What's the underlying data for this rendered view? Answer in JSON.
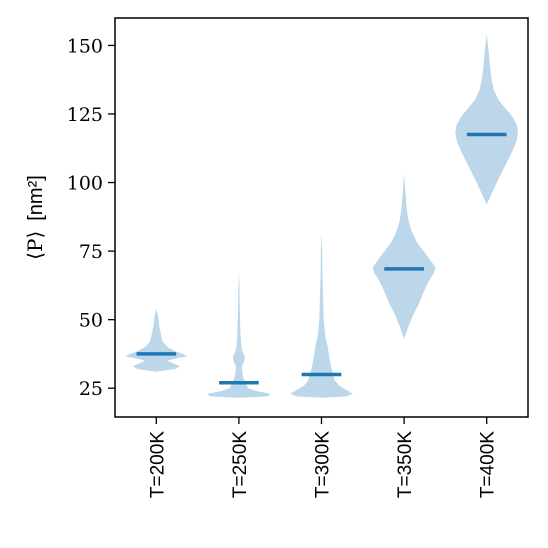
{
  "chart_data": {
    "type": "violin",
    "title": "",
    "ylabel": {
      "symbol": "⟨P⟩",
      "unit": "[nm²]"
    },
    "xlabel": "",
    "ylim": [
      14.5,
      160
    ],
    "yticks": [
      25,
      50,
      75,
      100,
      125,
      150
    ],
    "grid": false,
    "categories": [
      "T=200K",
      "T=250K",
      "T=300K",
      "T=350K",
      "T=400K"
    ],
    "colors": {
      "body": "#bcd6ea",
      "median": "#1f77b4",
      "axis": "#000000"
    },
    "violins": [
      {
        "label": "T=200K",
        "median": 37.5,
        "profile": [
          [
            31,
            0
          ],
          [
            32,
            0.6
          ],
          [
            33,
            0.75
          ],
          [
            34,
            0.55
          ],
          [
            35,
            0.35
          ],
          [
            36,
            0.7
          ],
          [
            36.5,
            0.98
          ],
          [
            37.5,
            0.85
          ],
          [
            38.5,
            0.6
          ],
          [
            40,
            0.36
          ],
          [
            42,
            0.2
          ],
          [
            45,
            0.14
          ],
          [
            48,
            0.09
          ],
          [
            51,
            0.06
          ],
          [
            54,
            0
          ]
        ]
      },
      {
        "label": "T=250K",
        "median": 27,
        "profile": [
          [
            21.5,
            0
          ],
          [
            22,
            0.92
          ],
          [
            23,
            1.0
          ],
          [
            24,
            0.55
          ],
          [
            25,
            0.3
          ],
          [
            27,
            0.2
          ],
          [
            29,
            0.14
          ],
          [
            31,
            0.1
          ],
          [
            33,
            0.1
          ],
          [
            35,
            0.17
          ],
          [
            36.5,
            0.2
          ],
          [
            38,
            0.12
          ],
          [
            40,
            0.08
          ],
          [
            45,
            0.05
          ],
          [
            52,
            0.03
          ],
          [
            60,
            0.02
          ],
          [
            68,
            0
          ]
        ]
      },
      {
        "label": "T=300K",
        "median": 30,
        "profile": [
          [
            21.5,
            0
          ],
          [
            22,
            0.8
          ],
          [
            23,
            1.0
          ],
          [
            24,
            0.85
          ],
          [
            26,
            0.55
          ],
          [
            28,
            0.42
          ],
          [
            30,
            0.37
          ],
          [
            33,
            0.3
          ],
          [
            36,
            0.25
          ],
          [
            40,
            0.2
          ],
          [
            44,
            0.12
          ],
          [
            50,
            0.07
          ],
          [
            58,
            0.05
          ],
          [
            66,
            0.03
          ],
          [
            75,
            0.02
          ],
          [
            82,
            0
          ]
        ]
      },
      {
        "label": "T=350K",
        "median": 68.5,
        "profile": [
          [
            43,
            0
          ],
          [
            47,
            0.12
          ],
          [
            52,
            0.3
          ],
          [
            56,
            0.48
          ],
          [
            60,
            0.62
          ],
          [
            64,
            0.78
          ],
          [
            67,
            0.95
          ],
          [
            69,
            1.0
          ],
          [
            72,
            0.82
          ],
          [
            75,
            0.62
          ],
          [
            78,
            0.42
          ],
          [
            82,
            0.25
          ],
          [
            86,
            0.14
          ],
          [
            90,
            0.09
          ],
          [
            95,
            0.05
          ],
          [
            103,
            0
          ]
        ]
      },
      {
        "label": "T=400K",
        "median": 117.5,
        "profile": [
          [
            92,
            0
          ],
          [
            95,
            0.12
          ],
          [
            100,
            0.32
          ],
          [
            106,
            0.58
          ],
          [
            111,
            0.8
          ],
          [
            115,
            0.95
          ],
          [
            118,
            1.0
          ],
          [
            121,
            0.96
          ],
          [
            124,
            0.82
          ],
          [
            127,
            0.6
          ],
          [
            130,
            0.38
          ],
          [
            134,
            0.22
          ],
          [
            138,
            0.15
          ],
          [
            142,
            0.11
          ],
          [
            147,
            0.07
          ],
          [
            154,
            0
          ]
        ]
      }
    ]
  }
}
